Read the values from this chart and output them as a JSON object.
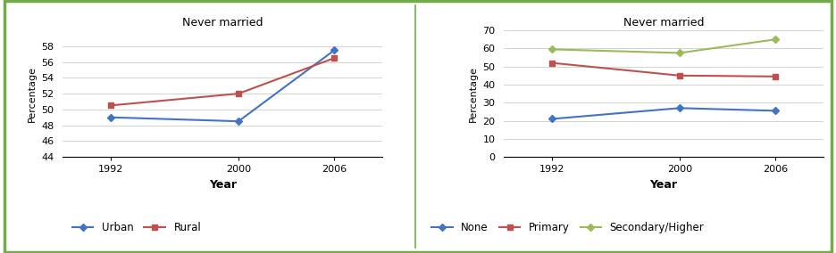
{
  "years": [
    1992,
    2000,
    2006
  ],
  "left_chart": {
    "title": "Never married",
    "urban": [
      49.0,
      48.5,
      57.5
    ],
    "rural": [
      50.5,
      52.0,
      56.5
    ],
    "ylabel": "Percentage",
    "xlabel": "Year",
    "ylim": [
      44,
      60
    ],
    "yticks": [
      44,
      46,
      48,
      50,
      52,
      54,
      56,
      58
    ],
    "legend": [
      "Urban",
      "Rural"
    ],
    "urban_color": "#4472c4",
    "rural_color": "#c0504d"
  },
  "right_chart": {
    "title": "Never married",
    "none": [
      21.0,
      27.0,
      25.5
    ],
    "primary": [
      52.0,
      45.0,
      44.5
    ],
    "secondary": [
      59.5,
      57.5,
      65.0
    ],
    "ylabel": "Percentage",
    "xlabel": "Year",
    "ylim": [
      0,
      70
    ],
    "yticks": [
      0,
      10,
      20,
      30,
      40,
      50,
      60,
      70
    ],
    "legend": [
      "None",
      "Primary",
      "Secondary/Higher"
    ],
    "none_color": "#4472c4",
    "primary_color": "#c0504d",
    "secondary_color": "#9bbb59"
  },
  "outer_border_color": "#70ad47",
  "background_color": "#ffffff",
  "figsize": [
    9.36,
    2.84
  ],
  "dpi": 100
}
